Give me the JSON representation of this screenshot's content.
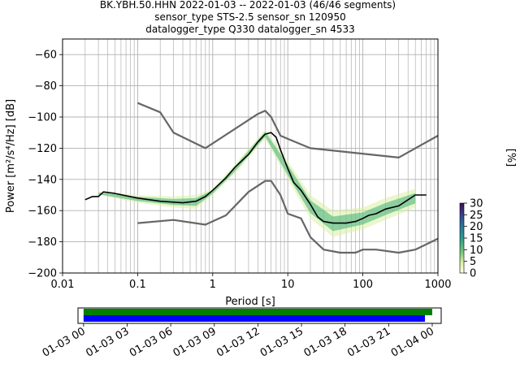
{
  "title": {
    "line1": "BK.YBH.50.HHN   2022-01-03 -- 2022-01-03  (46/46 segments)",
    "line2": "sensor_type STS-2.5 sensor_sn 120950",
    "line3": "datalogger_type Q330 datalogger_sn 4533"
  },
  "colors": {
    "median": "#000000",
    "noise_models": "#666666",
    "coverage_top": "#008000",
    "coverage_bottom": "#0000ff",
    "grid": "#b0b0b0"
  },
  "chart_data": [
    {
      "type": "heatmap",
      "title": "BK.YBH.50.HHN   2022-01-03 -- 2022-01-03  (46/46 segments)",
      "xlabel": "Period [s]",
      "ylabel": "Power [m²/s⁴/Hz] [dB]",
      "xscale": "log",
      "xlim": [
        0.01,
        1000
      ],
      "ylim": [
        -200,
        -50
      ],
      "x_ticks": [
        "0.01",
        "0.1",
        "1",
        "10",
        "100",
        "1000"
      ],
      "y_ticks": [
        "−200",
        "−180",
        "−160",
        "−140",
        "−120",
        "−100",
        "−80",
        "−60"
      ],
      "grid": true,
      "colorbar": {
        "label": "[%]",
        "range": [
          0,
          30
        ],
        "ticks": [
          "0",
          "5",
          "10",
          "15",
          "20",
          "25",
          "30"
        ],
        "colormap": "viridis_white_r"
      },
      "median": {
        "x": [
          0.02,
          0.025,
          0.03,
          0.035,
          0.05,
          0.1,
          0.2,
          0.4,
          0.6,
          0.8,
          1,
          1.5,
          2,
          3,
          4,
          5,
          6,
          7,
          8,
          10,
          12,
          15,
          20,
          25,
          30,
          40,
          60,
          80,
          100,
          120,
          150,
          200,
          300,
          500,
          700
        ],
        "y": [
          -153,
          -151,
          -151,
          -148,
          -149,
          -152,
          -154,
          -155,
          -154,
          -151,
          -147,
          -139,
          -132,
          -124,
          -116,
          -111,
          -110,
          -113,
          -121,
          -133,
          -142,
          -147,
          -156,
          -164,
          -167,
          -168,
          -168,
          -167,
          -165,
          -163,
          -162,
          -159,
          -157,
          -150,
          -150
        ]
      },
      "noise_model_high": {
        "x": [
          0.1,
          0.2,
          0.3,
          0.8,
          4,
          5,
          6,
          8,
          10,
          20,
          300,
          1000
        ],
        "y": [
          -91,
          -97,
          -110,
          -120,
          -98,
          -96,
          -100,
          -112,
          -114,
          -120,
          -126,
          -112
        ]
      },
      "noise_model_low": {
        "x": [
          0.1,
          0.3,
          0.8,
          1.5,
          3,
          5,
          6,
          8,
          10,
          15,
          20,
          30,
          50,
          80,
          100,
          150,
          300,
          500,
          1000
        ],
        "y": [
          -168,
          -166,
          -169,
          -163,
          -148,
          -141,
          -141,
          -150,
          -162,
          -165,
          -177,
          -185,
          -187,
          -187,
          -185,
          -185,
          -187,
          -185,
          -178
        ]
      },
      "percentile_spread": {
        "x": [
          0.03,
          0.1,
          0.3,
          0.6,
          1,
          2,
          5,
          10,
          20,
          40,
          100,
          200,
          500
        ],
        "upper": [
          -148,
          -150,
          -151,
          -150,
          -146,
          -130,
          -108,
          -128,
          -150,
          -160,
          -158,
          -152,
          -146
        ],
        "lower": [
          -150,
          -155,
          -158,
          -159,
          -150,
          -136,
          -114,
          -140,
          -165,
          -177,
          -172,
          -166,
          -158
        ]
      }
    },
    {
      "type": "bar",
      "title": "",
      "x_ticks": [
        "01-03 00",
        "01-03 03",
        "01-03 06",
        "01-03 09",
        "01-03 12",
        "01-03 15",
        "01-03 18",
        "01-03 21",
        "01-04 00"
      ],
      "xlim": [
        "2022-01-02 23:37",
        "2022-01-04 00:37"
      ],
      "series": [
        {
          "start": "2022-01-03 00:00",
          "end": "2022-01-04 00:00",
          "color": "#008000"
        },
        {
          "start": "2022-01-03 00:00",
          "end": "2022-01-03 23:30",
          "color": "#0000ff"
        }
      ]
    }
  ]
}
